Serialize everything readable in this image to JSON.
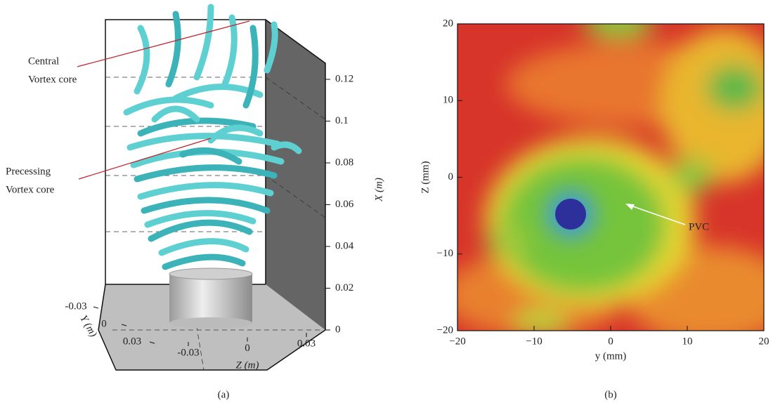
{
  "chart_data": [
    {
      "type": "isosurface3d",
      "caption": "(a)",
      "x_label": "X (m)",
      "y_label": "Y (m)",
      "z_label": "Z (m)",
      "xlim": [
        0,
        0.12
      ],
      "xticks": [
        0,
        0.02,
        0.04,
        0.06,
        0.08,
        0.1,
        0.12
      ],
      "ylim": [
        -0.03,
        0.03
      ],
      "yticks": [
        -0.03,
        0,
        0.03
      ],
      "zlim": [
        -0.03,
        0.03
      ],
      "zticks": [
        -0.03,
        0,
        0.03
      ],
      "annotations": [
        {
          "lines": [
            "Central",
            "Vortex core"
          ]
        },
        {
          "lines": [
            "Precessing",
            "Vortex core"
          ]
        }
      ]
    },
    {
      "type": "heatmap",
      "caption": "(b)",
      "x_label": "y (mm)",
      "y_label": "Z (mm)",
      "xlim": [
        -20,
        20
      ],
      "ylim": [
        -20,
        20
      ],
      "xticks": [
        {
          "value": -20,
          "label": "−20"
        },
        {
          "value": -10,
          "label": "−10"
        },
        0,
        10,
        20
      ],
      "yticks": [
        {
          "value": -20,
          "label": "−20"
        },
        {
          "value": -10,
          "label": "−10"
        },
        0,
        10,
        20
      ],
      "annotation": "PVC"
    }
  ]
}
